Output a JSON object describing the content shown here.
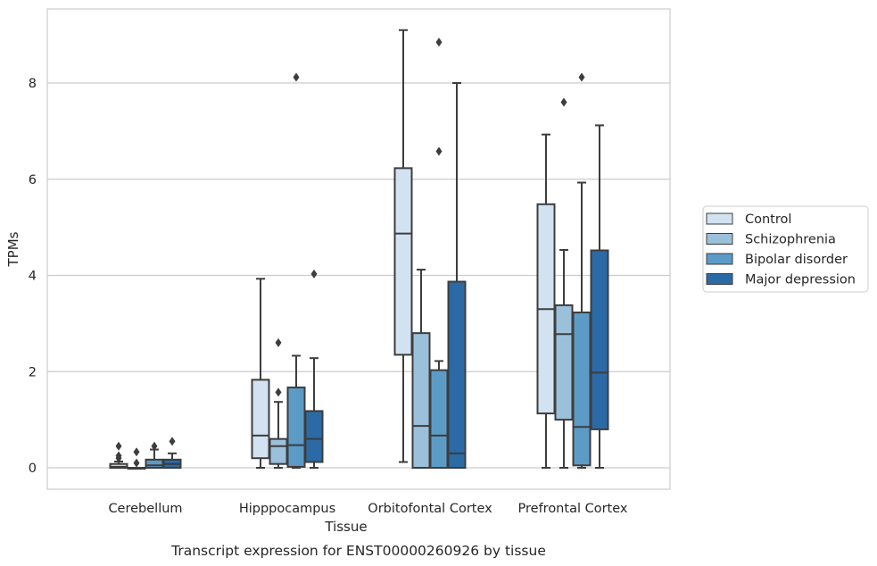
{
  "caption": "Transcript expression for ENST00000260926 by tissue",
  "chart_data": {
    "type": "box",
    "xlabel": "Tissue",
    "ylabel": "TPMs",
    "ylim": [
      -0.45,
      9.6
    ],
    "yticks": [
      0,
      2,
      4,
      6,
      8
    ],
    "grid": "horizontal",
    "legend_position": "right",
    "categories": [
      "Cerebellum",
      "Hipppocampus",
      "Orbitofontal Cortex",
      "Prefrontal Cortex"
    ],
    "series": [
      {
        "name": "Control",
        "color": "#d3e2f1",
        "boxes": [
          {
            "whislo": 0,
            "q1": 0,
            "med": 0.02,
            "q3": 0.08,
            "whishi": 0.13,
            "fliers": [
              0.2,
              0.25,
              0.45
            ]
          },
          {
            "whislo": 0,
            "q1": 0.2,
            "med": 0.67,
            "q3": 1.83,
            "whishi": 3.93,
            "fliers": []
          },
          {
            "whislo": 0.12,
            "q1": 2.35,
            "med": 4.87,
            "q3": 6.23,
            "whishi": 9.1,
            "fliers": []
          },
          {
            "whislo": 0,
            "q1": 1.13,
            "med": 3.3,
            "q3": 5.48,
            "whishi": 6.93,
            "fliers": []
          }
        ]
      },
      {
        "name": "Schizophrenia",
        "color": "#9bc0da",
        "boxes": [
          {
            "whislo": 0,
            "q1": 0,
            "med": 0,
            "q3": 0,
            "whishi": 0,
            "fliers": [
              0.1,
              0.33
            ]
          },
          {
            "whislo": 0,
            "q1": 0.08,
            "med": 0.45,
            "q3": 0.6,
            "whishi": 1.37,
            "fliers": [
              1.57,
              2.6
            ]
          },
          {
            "whislo": 0,
            "q1": 0,
            "med": 0.87,
            "q3": 2.8,
            "whishi": 4.12,
            "fliers": []
          },
          {
            "whislo": 0,
            "q1": 1.0,
            "med": 2.78,
            "q3": 3.38,
            "whishi": 4.53,
            "fliers": [
              7.6
            ]
          }
        ]
      },
      {
        "name": "Bipolar disorder",
        "color": "#5c9bc6",
        "boxes": [
          {
            "whislo": 0,
            "q1": 0,
            "med": 0.05,
            "q3": 0.17,
            "whishi": 0.38,
            "fliers": [
              0.45
            ]
          },
          {
            "whislo": 0,
            "q1": 0.02,
            "med": 0.47,
            "q3": 1.67,
            "whishi": 2.33,
            "fliers": [
              8.12
            ]
          },
          {
            "whislo": 0,
            "q1": 0,
            "med": 0.67,
            "q3": 2.03,
            "whishi": 2.22,
            "fliers": [
              6.58,
              8.85
            ]
          },
          {
            "whislo": 0,
            "q1": 0.05,
            "med": 0.85,
            "q3": 3.23,
            "whishi": 5.93,
            "fliers": [
              8.12
            ]
          }
        ]
      },
      {
        "name": "Major depression",
        "color": "#2b6aa5",
        "boxes": [
          {
            "whislo": 0,
            "q1": 0,
            "med": 0.08,
            "q3": 0.17,
            "whishi": 0.3,
            "fliers": [
              0.55
            ]
          },
          {
            "whislo": 0,
            "q1": 0.12,
            "med": 0.6,
            "q3": 1.18,
            "whishi": 2.28,
            "fliers": [
              4.03
            ]
          },
          {
            "whislo": 0,
            "q1": 0,
            "med": 0.3,
            "q3": 3.87,
            "whishi": 8.0,
            "fliers": []
          },
          {
            "whislo": 0,
            "q1": 0.8,
            "med": 1.98,
            "q3": 4.52,
            "whishi": 7.12,
            "fliers": []
          }
        ]
      }
    ]
  }
}
